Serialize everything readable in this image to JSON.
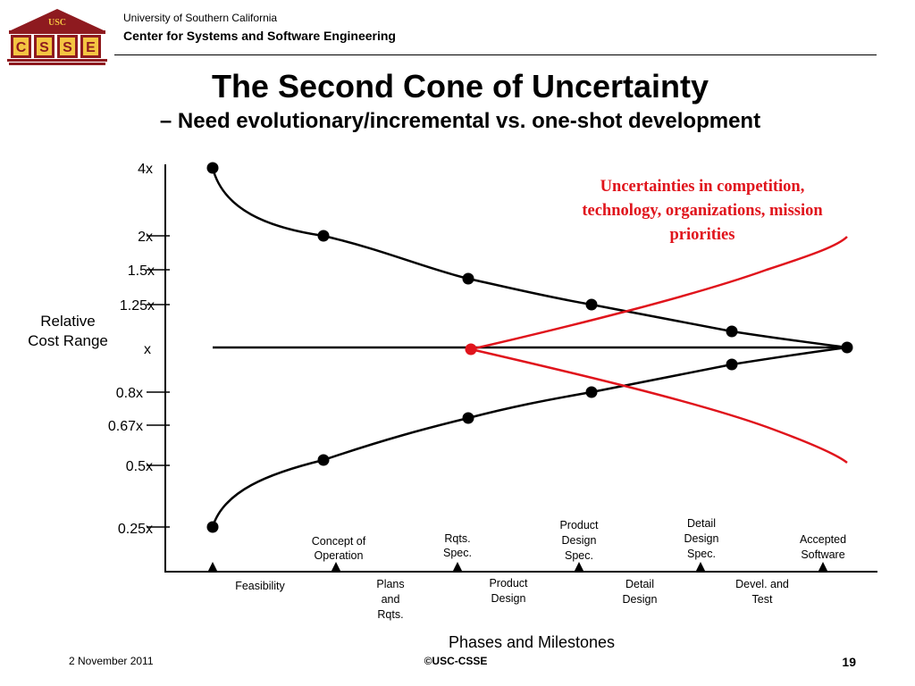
{
  "header": {
    "logo_top": "USC",
    "logo_letters": [
      "C",
      "S",
      "S",
      "E"
    ],
    "university": "University of Southern California",
    "center": "Center for Systems and Software Engineering"
  },
  "slide": {
    "title": "The Second Cone of Uncertainty",
    "subtitle": "– Need evolutionary/incremental vs. one-shot development"
  },
  "chart": {
    "y_axis_label": [
      "Relative",
      "Cost Range"
    ],
    "x_axis_label": "Phases and Milestones",
    "y_ticks": [
      "4x",
      "2x",
      "1.5x",
      "1.25x",
      "x",
      "0.8x",
      "0.67x",
      "0.5x",
      "0.25x"
    ],
    "milestones": [
      [
        "Concept of",
        "Operation"
      ],
      [
        "Rqts.",
        "Spec."
      ],
      [
        "Product",
        "Design",
        "Spec."
      ],
      [
        "Detail",
        "Design",
        "Spec."
      ],
      [
        "Accepted",
        "Software"
      ]
    ],
    "phases": [
      [
        "Feasibility"
      ],
      [
        "Plans",
        "and",
        "Rqts."
      ],
      [
        "Product",
        "Design"
      ],
      [
        "Detail",
        "Design"
      ],
      [
        "Devel. and",
        "Test"
      ]
    ],
    "annotation": [
      "Uncertainties in competition,",
      "technology, organizations, mission",
      "priorities"
    ],
    "colors": {
      "cone": "#000000",
      "second_cone": "#e0141c"
    }
  },
  "footer": {
    "date": "2 November 2011",
    "copyright": "©USC-CSSE",
    "page": "19"
  }
}
